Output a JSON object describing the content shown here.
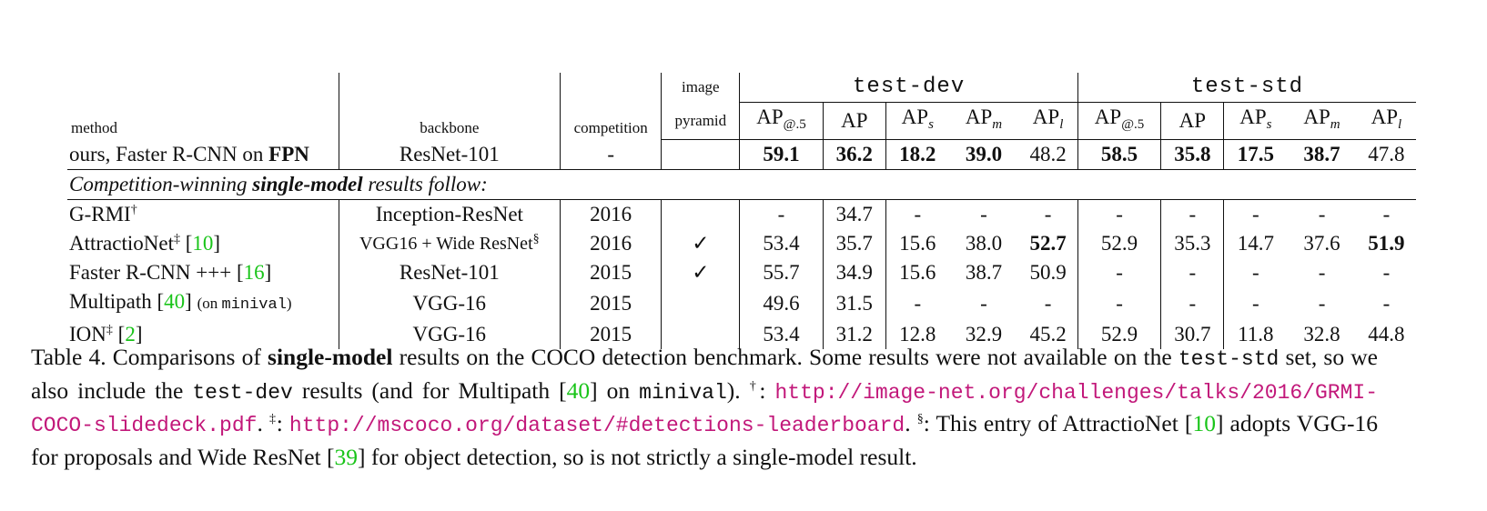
{
  "table": {
    "header": {
      "method": "method",
      "backbone": "backbone",
      "competition": "competition",
      "image_pyramid_line1": "image",
      "image_pyramid_line2": "pyramid",
      "group_test_dev": "test-dev",
      "group_test_std": "test-std",
      "metric_ap": "AP",
      "metric_sub_50": "@.5",
      "metric_sub_s": "s",
      "metric_sub_m": "m",
      "metric_sub_l": "l"
    },
    "ours": {
      "method": "ours, Faster R-CNN on ",
      "method_bold": "FPN",
      "backbone": "ResNet-101",
      "competition": "-",
      "pyramid": "",
      "dev": [
        "59.1",
        "36.2",
        "18.2",
        "39.0",
        "48.2"
      ],
      "std": [
        "58.5",
        "35.8",
        "17.5",
        "38.7",
        "47.8"
      ]
    },
    "section": {
      "text_before": "Competition-winning ",
      "text_bold": "single-model",
      "text_after": " results follow:"
    },
    "rows": [
      {
        "method": "G-RMI",
        "mark": "†",
        "ref": "",
        "note": "",
        "backbone": "Inception-ResNet",
        "backbone_mark": "",
        "competition": "2016",
        "pyramid": "",
        "dev": [
          "-",
          "34.7",
          "-",
          "-",
          "-"
        ],
        "std": [
          "-",
          "-",
          "-",
          "-",
          "-"
        ]
      },
      {
        "method": "AttractioNet",
        "mark": "‡",
        "ref": "10",
        "note": "",
        "backbone": "VGG16 + Wide ResNet",
        "backbone_mark": "§",
        "competition": "2016",
        "pyramid": "✓",
        "dev": [
          "53.4",
          "35.7",
          "15.6",
          "38.0",
          "52.7"
        ],
        "std": [
          "52.9",
          "35.3",
          "14.7",
          "37.6",
          "51.9"
        ]
      },
      {
        "method": "Faster R-CNN +++",
        "mark": "",
        "ref": "16",
        "note": "",
        "backbone": "ResNet-101",
        "backbone_mark": "",
        "competition": "2015",
        "pyramid": "✓",
        "dev": [
          "55.7",
          "34.9",
          "15.6",
          "38.7",
          "50.9"
        ],
        "std": [
          "-",
          "-",
          "-",
          "-",
          "-"
        ]
      },
      {
        "method": "Multipath",
        "mark": "",
        "ref": "40",
        "note_pre": "(on ",
        "note_mono": "minival",
        "note_post": ")",
        "backbone": "VGG-16",
        "backbone_mark": "",
        "competition": "2015",
        "pyramid": "",
        "dev": [
          "49.6",
          "31.5",
          "-",
          "-",
          "-"
        ],
        "std": [
          "-",
          "-",
          "-",
          "-",
          "-"
        ]
      },
      {
        "method": "ION",
        "mark": "‡",
        "ref": "2",
        "note": "",
        "backbone": "VGG-16",
        "backbone_mark": "",
        "competition": "2015",
        "pyramid": "",
        "dev": [
          "53.4",
          "31.2",
          "12.8",
          "32.9",
          "45.2"
        ],
        "std": [
          "52.9",
          "30.7",
          "11.8",
          "32.8",
          "44.8"
        ]
      }
    ]
  },
  "caption": {
    "p1": "Table 4. Comparisons of ",
    "p1b": "single-model",
    "p2": " results on the COCO detection benchmark.  Some results were not available on the ",
    "m1": "test-std",
    "p3": " set, so we also include the ",
    "m2": "test-dev",
    "p4": " results (and for Multipath [",
    "r40": "40",
    "p5": "] on ",
    "m3": "minival",
    "p6": "). ",
    "dag": "†",
    "p7": ": ",
    "url1": "http://image-net.org/challenges/talks/2016/GRMI-COCO-slidedeck.pdf",
    "p8": ". ",
    "ddag": "‡",
    "p9": ": ",
    "url2": "http://mscoco.org/dataset/#detections-leaderboard",
    "p10": ". ",
    "sect": "§",
    "p11": ": This entry of AttractioNet [",
    "r10": "10",
    "p12": "] adopts VGG-16 for proposals and Wide ResNet [",
    "r39": "39",
    "p13": "] for object detection, so is not strictly a single-model result."
  }
}
